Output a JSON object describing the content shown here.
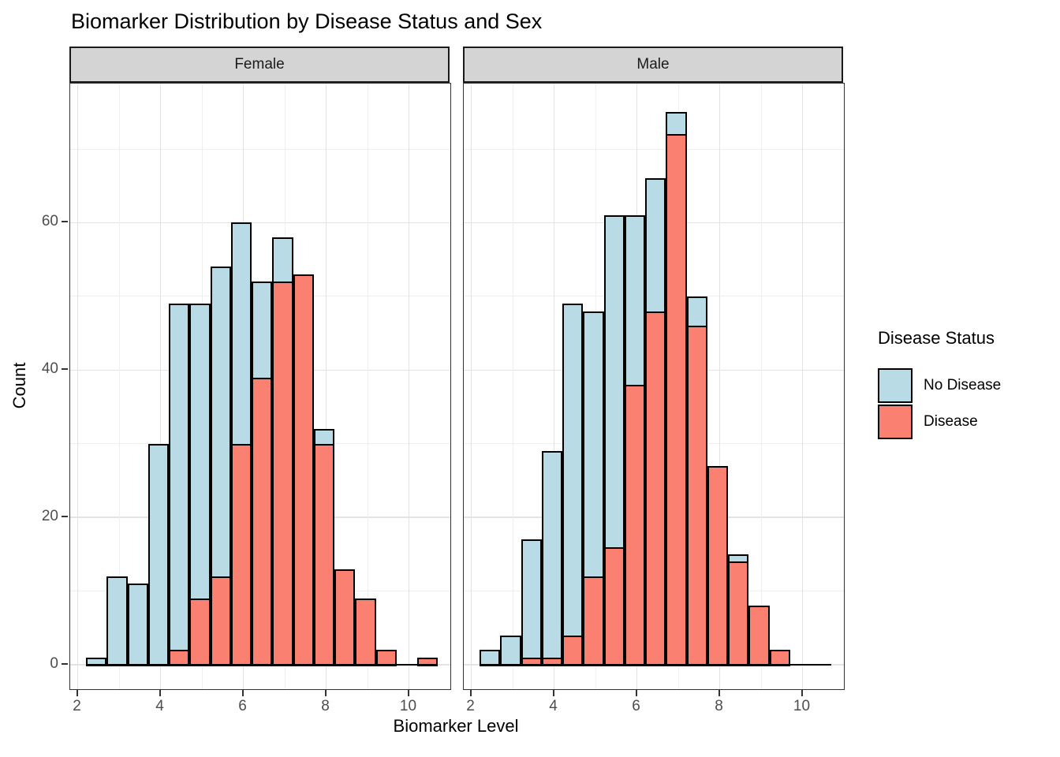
{
  "title": "Biomarker Distribution by Disease Status and Sex",
  "x_axis": {
    "title": "Biomarker Level",
    "tick_labels": [
      "2",
      "4",
      "6",
      "8",
      "10"
    ],
    "major_ticks": [
      2,
      4,
      6,
      8,
      10
    ],
    "minor_ticks": [
      3,
      5,
      7,
      9,
      11
    ],
    "range": [
      1.82,
      11.0
    ]
  },
  "y_axis": {
    "title": "Count",
    "tick_labels": [
      "0",
      "20",
      "40",
      "60"
    ],
    "major_ticks": [
      0,
      20,
      40,
      60
    ],
    "minor_ticks": [
      10,
      30,
      50,
      70
    ],
    "range": [
      0,
      78.9
    ]
  },
  "legend": {
    "title": "Disease Status",
    "entries": [
      {
        "label": "No Disease",
        "color": "#b9dbe5"
      },
      {
        "label": "Disease",
        "color": "#fa8072"
      }
    ]
  },
  "colors": {
    "no_disease_fill": "#b9dbe5",
    "disease_fill": "#fa8072",
    "bar_stroke": "#000000",
    "strip_fill": "#d4d4d4",
    "gridline_major": "#e3e3e3",
    "gridline_minor": "#efefef",
    "panel_border": "#333333",
    "tick_label_color": "#4d4d4d"
  },
  "chart_data": {
    "type": "bar",
    "subtype": "faceted overlaid histogram, position identity",
    "title": "Biomarker Distribution by Disease Status and Sex",
    "xlabel": "Biomarker Level",
    "ylabel": "Count",
    "xlim": [
      1.82,
      11.0
    ],
    "ylim": [
      0,
      78.9
    ],
    "grid": "on",
    "legend_position": "right",
    "bin_start": 2.2,
    "bin_width": 0.5,
    "n_bins": 17,
    "bin_centers": [
      2.45,
      2.95,
      3.45,
      3.95,
      4.45,
      4.95,
      5.45,
      5.95,
      6.45,
      6.95,
      7.45,
      7.95,
      8.45,
      8.95,
      9.45,
      9.95,
      10.45
    ],
    "facets": [
      {
        "label": "Female",
        "series": [
          {
            "name": "No Disease",
            "values": [
              1,
              12,
              11,
              30,
              49,
              49,
              54,
              60,
              52,
              58,
              0,
              32,
              0,
              0,
              0,
              0,
              0
            ]
          },
          {
            "name": "Disease",
            "values": [
              0,
              0,
              0,
              0,
              2,
              9,
              12,
              30,
              39,
              52,
              53,
              30,
              13,
              9,
              2,
              0,
              1
            ]
          }
        ]
      },
      {
        "label": "Male",
        "series": [
          {
            "name": "No Disease",
            "values": [
              2,
              4,
              17,
              29,
              49,
              48,
              61,
              61,
              66,
              75,
              50,
              0,
              15,
              0,
              0,
              0,
              0
            ]
          },
          {
            "name": "Disease",
            "values": [
              0,
              0,
              1,
              1,
              4,
              12,
              16,
              38,
              48,
              72,
              46,
              27,
              14,
              8,
              2,
              0,
              0
            ]
          }
        ]
      }
    ]
  }
}
